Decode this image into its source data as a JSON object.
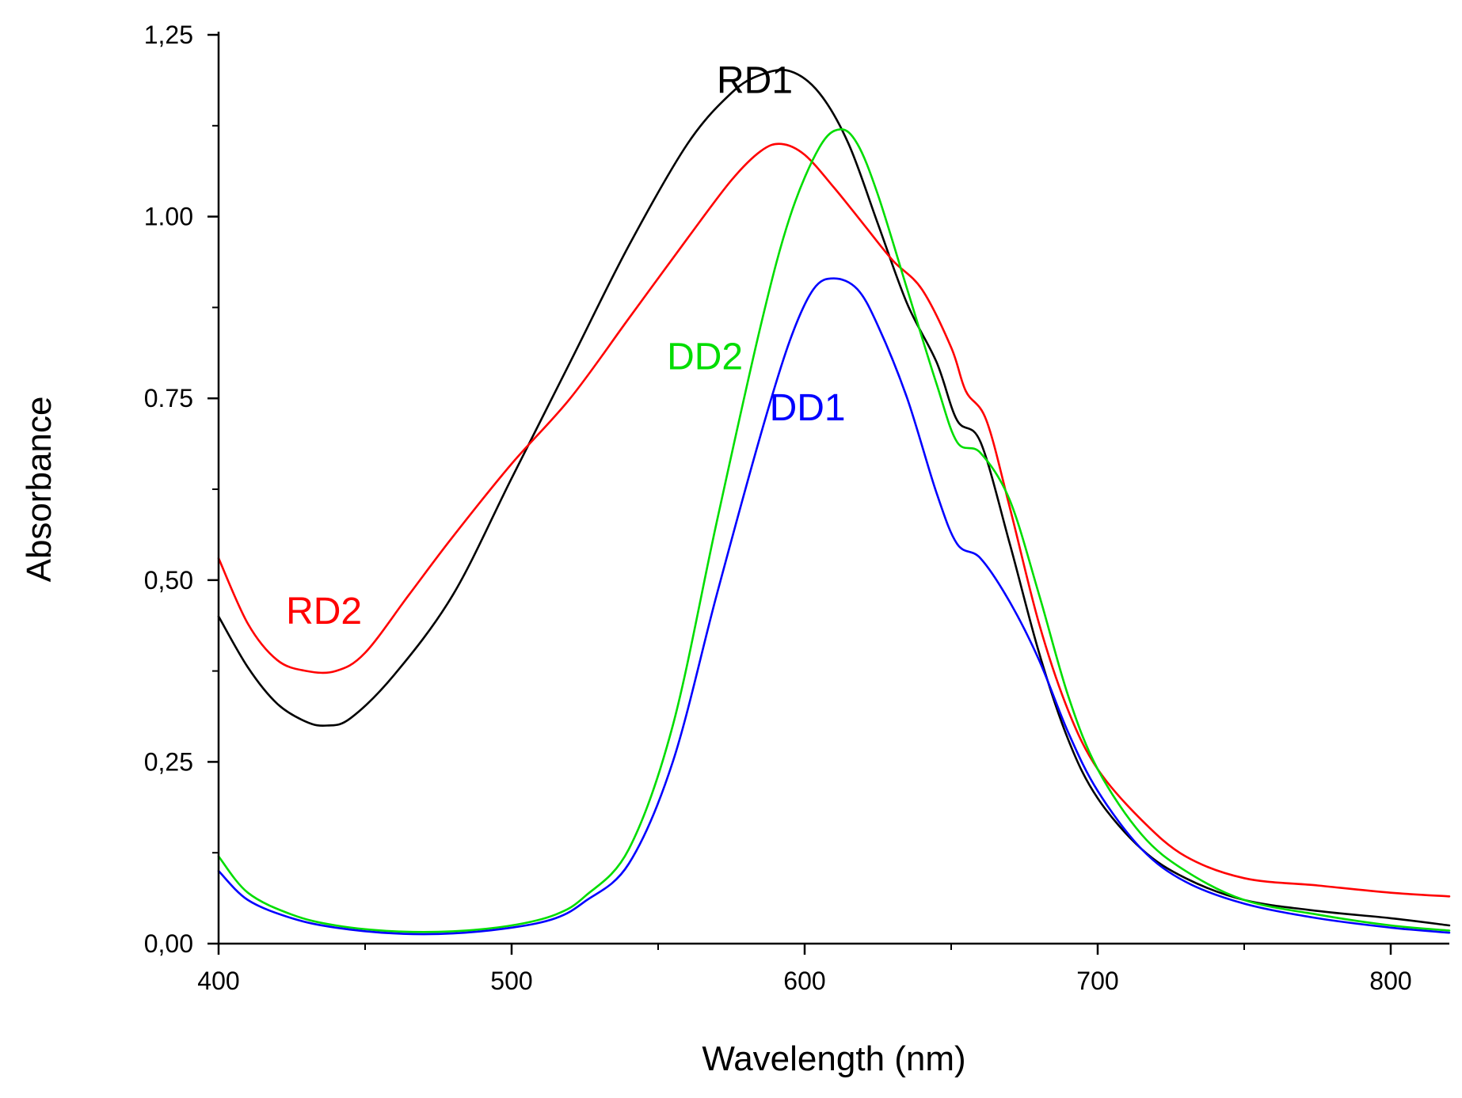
{
  "chart_data": {
    "type": "line",
    "title": "",
    "xlabel": "Wavelength (nm)",
    "ylabel": "Absorbance",
    "xlim": [
      400,
      820
    ],
    "ylim": [
      0.0,
      1.25
    ],
    "grid": false,
    "x_ticks": [
      {
        "value": 400,
        "label": "400"
      },
      {
        "value": 500,
        "label": "500"
      },
      {
        "value": 600,
        "label": "600"
      },
      {
        "value": 700,
        "label": "700"
      },
      {
        "value": 800,
        "label": "800"
      }
    ],
    "x_minor_ticks": [
      450,
      550,
      650,
      750
    ],
    "y_ticks": [
      {
        "value": 0.0,
        "label": "0,00"
      },
      {
        "value": 0.25,
        "label": "0,25"
      },
      {
        "value": 0.5,
        "label": "0,50"
      },
      {
        "value": 0.75,
        "label": "0.75"
      },
      {
        "value": 1.0,
        "label": "1.00"
      },
      {
        "value": 1.25,
        "label": "1,25"
      }
    ],
    "y_minor_ticks": [
      0.125,
      0.375,
      0.625,
      0.875,
      1.125
    ],
    "series": [
      {
        "name": "RD1",
        "color": "#000000",
        "label": {
          "text": "RD1",
          "x": 570,
          "y": 1.17
        },
        "points": [
          [
            400,
            0.45
          ],
          [
            410,
            0.38
          ],
          [
            420,
            0.33
          ],
          [
            430,
            0.305
          ],
          [
            437,
            0.3
          ],
          [
            445,
            0.31
          ],
          [
            460,
            0.37
          ],
          [
            480,
            0.48
          ],
          [
            500,
            0.64
          ],
          [
            520,
            0.8
          ],
          [
            540,
            0.96
          ],
          [
            560,
            1.1
          ],
          [
            575,
            1.17
          ],
          [
            585,
            1.195
          ],
          [
            595,
            1.2
          ],
          [
            605,
            1.17
          ],
          [
            615,
            1.1
          ],
          [
            625,
            0.99
          ],
          [
            635,
            0.88
          ],
          [
            645,
            0.8
          ],
          [
            652,
            0.72
          ],
          [
            660,
            0.69
          ],
          [
            670,
            0.55
          ],
          [
            680,
            0.4
          ],
          [
            690,
            0.28
          ],
          [
            700,
            0.2
          ],
          [
            715,
            0.13
          ],
          [
            730,
            0.09
          ],
          [
            750,
            0.06
          ],
          [
            775,
            0.045
          ],
          [
            800,
            0.035
          ],
          [
            820,
            0.025
          ]
        ]
      },
      {
        "name": "RD2",
        "color": "#ff0000",
        "label": {
          "text": "RD2",
          "x": 423,
          "y": 0.44
        },
        "points": [
          [
            400,
            0.53
          ],
          [
            410,
            0.44
          ],
          [
            420,
            0.39
          ],
          [
            430,
            0.375
          ],
          [
            440,
            0.375
          ],
          [
            450,
            0.4
          ],
          [
            465,
            0.48
          ],
          [
            480,
            0.56
          ],
          [
            500,
            0.66
          ],
          [
            520,
            0.75
          ],
          [
            540,
            0.86
          ],
          [
            560,
            0.97
          ],
          [
            575,
            1.05
          ],
          [
            585,
            1.09
          ],
          [
            592,
            1.1
          ],
          [
            600,
            1.085
          ],
          [
            610,
            1.04
          ],
          [
            620,
            0.99
          ],
          [
            630,
            0.94
          ],
          [
            640,
            0.9
          ],
          [
            650,
            0.82
          ],
          [
            655,
            0.76
          ],
          [
            662,
            0.72
          ],
          [
            670,
            0.6
          ],
          [
            680,
            0.44
          ],
          [
            690,
            0.32
          ],
          [
            700,
            0.24
          ],
          [
            715,
            0.17
          ],
          [
            730,
            0.12
          ],
          [
            750,
            0.09
          ],
          [
            775,
            0.08
          ],
          [
            800,
            0.07
          ],
          [
            820,
            0.065
          ]
        ]
      },
      {
        "name": "DD2",
        "color": "#00dd00",
        "label": {
          "text": "DD2",
          "x": 553,
          "y": 0.79
        },
        "points": [
          [
            400,
            0.12
          ],
          [
            410,
            0.07
          ],
          [
            425,
            0.04
          ],
          [
            440,
            0.025
          ],
          [
            460,
            0.017
          ],
          [
            480,
            0.017
          ],
          [
            500,
            0.025
          ],
          [
            515,
            0.04
          ],
          [
            525,
            0.065
          ],
          [
            540,
            0.13
          ],
          [
            555,
            0.3
          ],
          [
            570,
            0.58
          ],
          [
            585,
            0.85
          ],
          [
            595,
            1.0
          ],
          [
            605,
            1.095
          ],
          [
            612,
            1.12
          ],
          [
            618,
            1.1
          ],
          [
            625,
            1.03
          ],
          [
            635,
            0.9
          ],
          [
            645,
            0.77
          ],
          [
            652,
            0.69
          ],
          [
            660,
            0.675
          ],
          [
            670,
            0.61
          ],
          [
            680,
            0.48
          ],
          [
            690,
            0.34
          ],
          [
            700,
            0.24
          ],
          [
            715,
            0.15
          ],
          [
            730,
            0.1
          ],
          [
            750,
            0.06
          ],
          [
            775,
            0.04
          ],
          [
            800,
            0.025
          ],
          [
            820,
            0.018
          ]
        ]
      },
      {
        "name": "DD1",
        "color": "#0000ff",
        "label": {
          "text": "DD1",
          "x": 588,
          "y": 0.72
        },
        "points": [
          [
            400,
            0.1
          ],
          [
            410,
            0.06
          ],
          [
            425,
            0.035
          ],
          [
            440,
            0.022
          ],
          [
            460,
            0.014
          ],
          [
            480,
            0.014
          ],
          [
            500,
            0.022
          ],
          [
            515,
            0.035
          ],
          [
            525,
            0.058
          ],
          [
            540,
            0.11
          ],
          [
            555,
            0.25
          ],
          [
            570,
            0.48
          ],
          [
            585,
            0.7
          ],
          [
            595,
            0.83
          ],
          [
            603,
            0.9
          ],
          [
            610,
            0.915
          ],
          [
            618,
            0.9
          ],
          [
            625,
            0.85
          ],
          [
            635,
            0.75
          ],
          [
            645,
            0.62
          ],
          [
            652,
            0.55
          ],
          [
            660,
            0.53
          ],
          [
            670,
            0.47
          ],
          [
            680,
            0.39
          ],
          [
            690,
            0.29
          ],
          [
            700,
            0.21
          ],
          [
            715,
            0.13
          ],
          [
            730,
            0.085
          ],
          [
            750,
            0.055
          ],
          [
            775,
            0.035
          ],
          [
            800,
            0.022
          ],
          [
            820,
            0.015
          ]
        ]
      }
    ]
  }
}
